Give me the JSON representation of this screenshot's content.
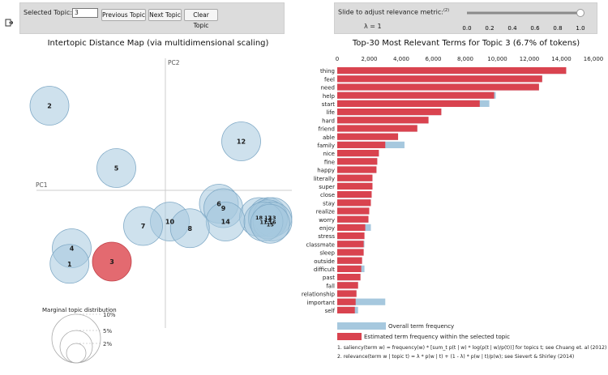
{
  "controls": {
    "selected_topic_label": "Selected Topic:",
    "selected_topic_value": "3",
    "prev_button": "Previous Topic",
    "next_button": "Next Topic",
    "clear_button": "Clear Topic",
    "slider_label": "Slide to adjust relevance metric:",
    "slider_label_sup": "(2)",
    "lambda_text": "λ = 1",
    "slider_ticks": [
      "0.0",
      "0.2",
      "0.4",
      "0.6",
      "0.8",
      "1.0"
    ],
    "lambda_value": 1.0
  },
  "left_title": "Intertopic Distance Map (via multidimensional scaling)",
  "right_title": "Top-30 Most Relevant Terms for Topic 3 (6.7% of tokens)",
  "legend_left": {
    "title": "Marginal topic distribution",
    "labels": [
      "2%",
      "5%",
      "10%"
    ]
  },
  "legend_right": {
    "overall": "Overall term frequency",
    "estimated": "Estimated term frequency within the selected topic",
    "note1": "1. saliency(term w) = frequency(w) * [sum_t p(t | w) * log(p(t | w)/p(t))] for topics t; see Chuang et. al (2012)",
    "note2": "2. relevance(term w | topic t) = λ * p(w | t) + (1 - λ) * p(w | t)/p(w); see Sievert & Shirley (2014)"
  },
  "colors": {
    "overall": "#a6c8de",
    "estimated": "#d9434f",
    "topic_circle": "#a6c8de",
    "selected_circle": "#e05a60"
  },
  "chart_data": [
    {
      "type": "scatter",
      "title": "Intertopic Distance Map (via multidimensional scaling)",
      "axis_labels": [
        "PC1",
        "PC2"
      ],
      "selected_topic": 3,
      "topics": [
        {
          "id": "2",
          "x": -0.26,
          "y": 0.19
        },
        {
          "id": "12",
          "x": 0.17,
          "y": 0.11
        },
        {
          "id": "5",
          "x": -0.11,
          "y": 0.05
        },
        {
          "id": "6",
          "x": 0.12,
          "y": -0.03
        },
        {
          "id": "9",
          "x": 0.13,
          "y": -0.04
        },
        {
          "id": "18",
          "x": 0.21,
          "y": -0.06
        },
        {
          "id": "17",
          "x": 0.23,
          "y": -0.06
        },
        {
          "id": "13",
          "x": 0.24,
          "y": -0.06
        },
        {
          "id": "19",
          "x": 0.23,
          "y": -0.065
        },
        {
          "id": "16",
          "x": 0.24,
          "y": -0.07
        },
        {
          "id": "14",
          "x": 0.135,
          "y": -0.07
        },
        {
          "id": "11",
          "x": 0.22,
          "y": -0.07
        },
        {
          "id": "15",
          "x": 0.235,
          "y": -0.075
        },
        {
          "id": "10",
          "x": 0.01,
          "y": -0.07
        },
        {
          "id": "7",
          "x": -0.05,
          "y": -0.08
        },
        {
          "id": "8",
          "x": 0.055,
          "y": -0.085
        },
        {
          "id": "4",
          "x": -0.21,
          "y": -0.13
        },
        {
          "id": "1",
          "x": -0.215,
          "y": -0.165
        },
        {
          "id": "3",
          "x": -0.12,
          "y": -0.16
        }
      ]
    },
    {
      "type": "bar",
      "title": "Top-30 Most Relevant Terms for Topic 3 (6.7% of tokens)",
      "xlim": [
        0,
        16000
      ],
      "x_ticks": [
        0,
        2000,
        4000,
        6000,
        8000,
        10000,
        12000,
        14000,
        16000
      ],
      "x_tick_labels": [
        "0",
        "2,000",
        "4,000",
        "6,000",
        "8,000",
        "10,000",
        "12,000",
        "14,000",
        "16,000"
      ],
      "categories": [
        "thing",
        "feel",
        "need",
        "help",
        "start",
        "life",
        "hard",
        "friend",
        "able",
        "family",
        "nice",
        "fine",
        "happy",
        "literally",
        "super",
        "close",
        "stay",
        "realize",
        "worry",
        "enjoy",
        "stress",
        "classmate",
        "sleep",
        "outside",
        "difficult",
        "past",
        "fall",
        "relationship",
        "important",
        "self"
      ],
      "series": [
        {
          "name": "Overall term frequency",
          "values": [
            14300,
            12800,
            12600,
            9900,
            9500,
            6500,
            5700,
            5000,
            3800,
            4200,
            2600,
            2500,
            2450,
            2200,
            2200,
            2150,
            2100,
            2000,
            1950,
            2100,
            1700,
            1700,
            1650,
            1550,
            1700,
            1450,
            1300,
            1200,
            3000,
            1300
          ]
        },
        {
          "name": "Estimated term frequency within the selected topic",
          "values": [
            14300,
            12800,
            12600,
            9800,
            8900,
            6500,
            5700,
            5000,
            3800,
            3000,
            2600,
            2500,
            2450,
            2200,
            2200,
            2150,
            2100,
            2000,
            1950,
            1750,
            1700,
            1650,
            1650,
            1550,
            1500,
            1450,
            1300,
            1200,
            1150,
            1100
          ]
        }
      ]
    }
  ]
}
